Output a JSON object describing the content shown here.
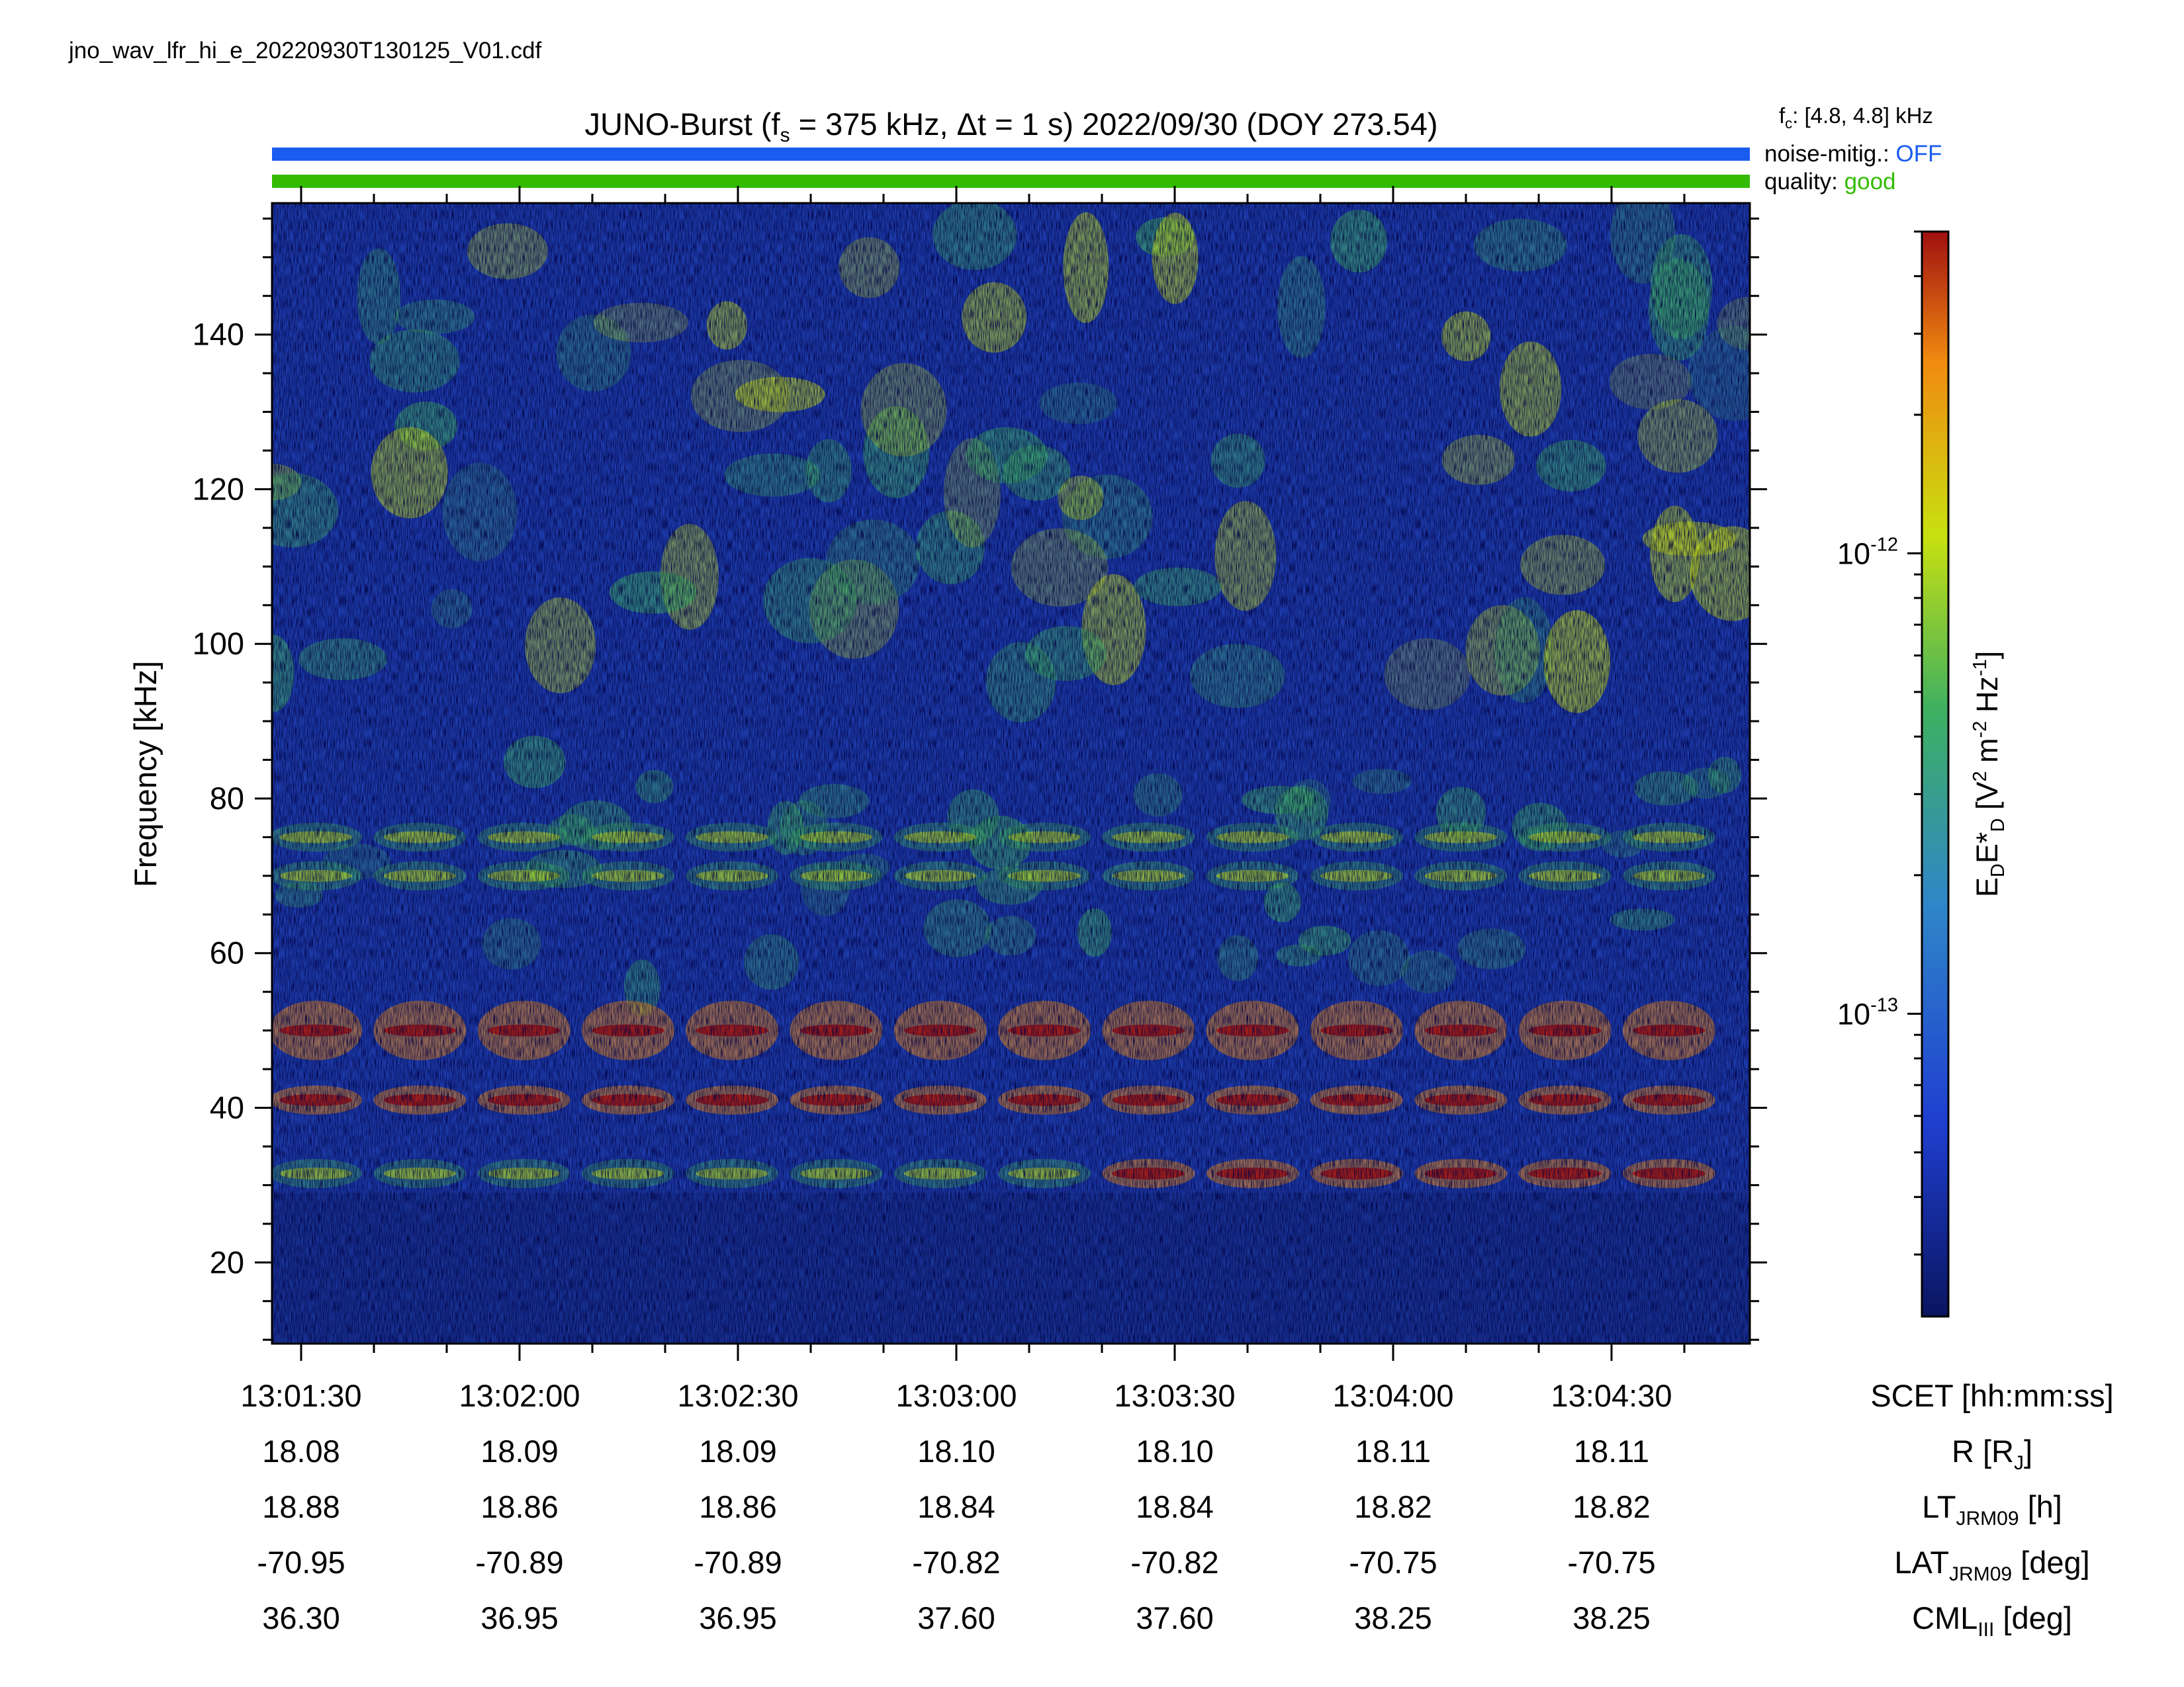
{
  "file_name": "jno_wav_lfr_hi_e_20220930T130125_V01.cdf",
  "title": {
    "instrument": "JUNO-Burst",
    "fs_label": "f",
    "fs_sub": "s",
    "fs_value": " = 375 kHz, Δt = 1 s)",
    "date": "2022/09/30 (DOY 273.54)"
  },
  "status": {
    "fc_label": "f",
    "fc_sub": "c",
    "fc_value": ": [4.8, 4.8] kHz",
    "noise_label": "noise-mitig.:",
    "noise_value": "OFF",
    "quality_label": "quality:",
    "quality_value": "good",
    "noise_color": "#1a5cf0",
    "quality_color": "#33bb00"
  },
  "colorbar": {
    "label_main": "E",
    "label_sub1": "D",
    "label_mid": "E*",
    "label_sub2": "D",
    "label_units": "[V",
    "label_u1": "2",
    "label_u2": " m",
    "label_u3": "-2",
    "label_u4": " Hz",
    "label_u5": "-1",
    "label_u6": "]",
    "ticks": [
      {
        "base": "10",
        "exp": "-12",
        "value": 1e-12
      },
      {
        "base": "10",
        "exp": "-13",
        "value": 1e-13
      }
    ],
    "min": 2.2e-14,
    "max": 5e-12,
    "scale": "log",
    "colors": [
      "#0a1560",
      "#1f3fd0",
      "#2f86c8",
      "#3fb060",
      "#c8e010",
      "#f08a10",
      "#a01010"
    ]
  },
  "chart_data": {
    "type": "heatmap",
    "xlabel": "SCET [hh:mm:ss]",
    "ylabel": "Frequency [kHz]",
    "xlim": [
      "13:01:26",
      "13:04:49"
    ],
    "ylim": [
      9.5,
      157
    ],
    "x_ticks": [
      "13:01:30",
      "13:02:00",
      "13:02:30",
      "13:03:00",
      "13:03:30",
      "13:04:00",
      "13:04:30"
    ],
    "y_ticks": [
      20,
      40,
      60,
      80,
      100,
      120,
      140
    ],
    "bands_kHz": [
      31.5,
      41,
      50,
      70,
      75
    ],
    "ephemeris": [
      {
        "label_main": "R [R",
        "label_sub": "J",
        "label_end": "]",
        "values": [
          "18.08",
          "18.09",
          "18.09",
          "18.10",
          "18.10",
          "18.11",
          "18.11"
        ]
      },
      {
        "label_main": "LT",
        "label_sub": "JRM09",
        "label_end": " [h]",
        "values": [
          "18.88",
          "18.86",
          "18.86",
          "18.84",
          "18.84",
          "18.82",
          "18.82"
        ]
      },
      {
        "label_main": "LAT",
        "label_sub": "JRM09",
        "label_end": " [deg]",
        "values": [
          "-70.95",
          "-70.89",
          "-70.89",
          "-70.82",
          "-70.82",
          "-70.75",
          "-70.75"
        ]
      },
      {
        "label_main": "CML",
        "label_sub": "III",
        "label_end": " [deg]",
        "values": [
          "36.30",
          "36.95",
          "36.95",
          "37.60",
          "37.60",
          "38.25",
          "38.25"
        ]
      }
    ]
  }
}
